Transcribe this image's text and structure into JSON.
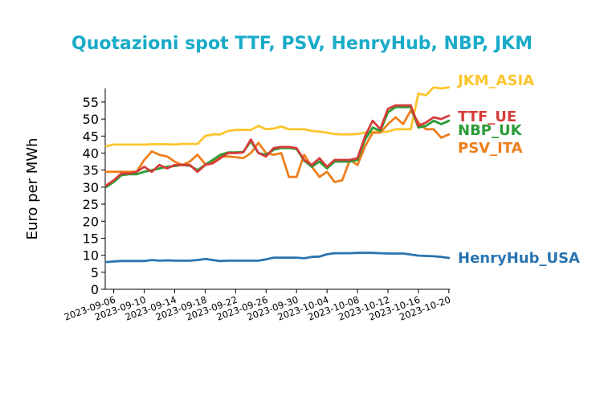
{
  "chart_data": {
    "type": "line",
    "title": "Quotazioni spot TTF, PSV, HenryHub, NBP, JKM",
    "xlabel": "",
    "ylabel": "Euro per MWh",
    "ylim": [
      0,
      59
    ],
    "yticks": [
      "0",
      "5",
      "10",
      "15",
      "20",
      "25",
      "30",
      "35",
      "40",
      "45",
      "50",
      "55"
    ],
    "xlim": [
      "2023-09-05",
      "2023-10-20"
    ],
    "xticks": [
      "2023-09-06",
      "2023-09-10",
      "2023-09-14",
      "2023-09-18",
      "2023-09-22",
      "2023-09-26",
      "2023-09-30",
      "2023-10-04",
      "2023-10-08",
      "2023-10-12",
      "2023-10-16",
      "2023-10-20"
    ],
    "grid": false,
    "legend": "inline-right",
    "x": [
      "2023-09-05",
      "2023-09-06",
      "2023-09-07",
      "2023-09-08",
      "2023-09-09",
      "2023-09-10",
      "2023-09-11",
      "2023-09-12",
      "2023-09-13",
      "2023-09-14",
      "2023-09-15",
      "2023-09-16",
      "2023-09-17",
      "2023-09-18",
      "2023-09-19",
      "2023-09-20",
      "2023-09-21",
      "2023-09-22",
      "2023-09-23",
      "2023-09-24",
      "2023-09-25",
      "2023-09-26",
      "2023-09-27",
      "2023-09-28",
      "2023-09-29",
      "2023-09-30",
      "2023-10-01",
      "2023-10-02",
      "2023-10-03",
      "2023-10-04",
      "2023-10-05",
      "2023-10-06",
      "2023-10-07",
      "2023-10-08",
      "2023-10-09",
      "2023-10-10",
      "2023-10-11",
      "2023-10-12",
      "2023-10-13",
      "2023-10-14",
      "2023-10-15",
      "2023-10-16",
      "2023-10-17",
      "2023-10-18",
      "2023-10-19",
      "2023-10-20"
    ],
    "series": [
      {
        "name": "JKM_ASIA",
        "color": "#fcc52d",
        "values": [
          42,
          42.5,
          42.5,
          42.5,
          42.5,
          42.5,
          42.6,
          42.6,
          42.6,
          42.5,
          42.7,
          42.7,
          42.7,
          45,
          45.5,
          45.5,
          46.5,
          46.8,
          46.8,
          46.8,
          48,
          47,
          47.2,
          47.8,
          47,
          47,
          47,
          46.5,
          46.3,
          46,
          45.6,
          45.5,
          45.5,
          45.6,
          46,
          46.2,
          46.2,
          46.3,
          47,
          47,
          47,
          57.5,
          57,
          59.3,
          59,
          59.3
        ]
      },
      {
        "name": "TTF_UE",
        "color": "#d43c3a",
        "values": [
          30.5,
          32,
          34,
          34,
          34.5,
          36,
          34.5,
          36.5,
          35.5,
          36.5,
          36.5,
          36.5,
          34.5,
          36.5,
          37,
          38.5,
          40,
          40,
          40.2,
          44,
          40,
          39,
          41.5,
          41.8,
          41.8,
          41.5,
          38,
          36.5,
          38.5,
          36,
          38,
          38,
          38,
          38.5,
          45,
          49.5,
          47,
          53,
          54,
          54,
          54,
          48,
          49,
          50.5,
          50,
          51
        ]
      },
      {
        "name": "NBP_UK",
        "color": "#2a9c37",
        "values": [
          30,
          31.5,
          33.5,
          33.8,
          33.8,
          34.5,
          35,
          35.5,
          36,
          36.2,
          36.5,
          36.3,
          35,
          36.5,
          38,
          39.5,
          40.2,
          40.2,
          40.3,
          43.5,
          40,
          39.5,
          41,
          41.5,
          41.5,
          41.2,
          37.8,
          36,
          37.5,
          35.5,
          37.5,
          37.5,
          37.5,
          38,
          44,
          47.5,
          46.5,
          52,
          53.5,
          53.5,
          53.5,
          47.5,
          48,
          49.5,
          48.5,
          49.5
        ]
      },
      {
        "name": "PSV_ITA",
        "color": "#ed7f1c",
        "values": [
          34.5,
          34.5,
          34.5,
          34.5,
          34.5,
          38,
          40.5,
          39.5,
          39,
          37.5,
          36.5,
          37.5,
          39.5,
          36.8,
          37.5,
          39,
          39,
          38.8,
          38.5,
          40,
          43,
          40,
          39.5,
          40,
          33,
          33,
          39.5,
          36,
          33,
          34.5,
          31.5,
          32,
          38,
          36.5,
          42,
          46,
          46,
          48.5,
          50.5,
          48.5,
          52.5,
          49,
          47,
          47,
          44.5,
          45.5
        ]
      },
      {
        "name": "HenryHub_USA",
        "color": "#2a74b1",
        "values": [
          8,
          8.2,
          8.3,
          8.3,
          8.3,
          8.3,
          8.6,
          8.4,
          8.5,
          8.4,
          8.4,
          8.4,
          8.6,
          8.9,
          8.6,
          8.3,
          8.4,
          8.4,
          8.4,
          8.4,
          8.4,
          8.8,
          9.3,
          9.3,
          9.3,
          9.3,
          9.1,
          9.5,
          9.6,
          10.3,
          10.6,
          10.6,
          10.6,
          10.7,
          10.7,
          10.7,
          10.6,
          10.5,
          10.5,
          10.5,
          10.2,
          9.9,
          9.8,
          9.7,
          9.5,
          9.2
        ]
      }
    ]
  }
}
